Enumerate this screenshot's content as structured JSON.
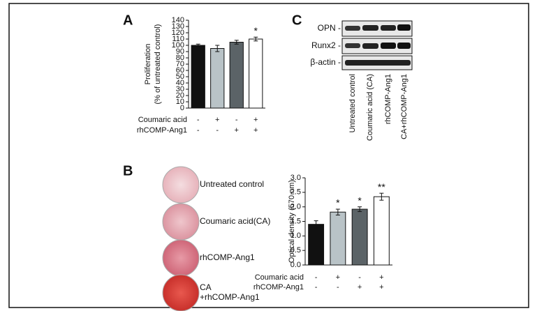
{
  "panels": [
    "A",
    "B",
    "C"
  ],
  "chart_data": [
    {
      "type": "bar",
      "y_label": [
        "Proliferation",
        "(% of untreated control)"
      ],
      "values": [
        100,
        95,
        105,
        110
      ],
      "errors": [
        2,
        5,
        3,
        3
      ],
      "colors": [
        "#111111",
        "#b9c3c7",
        "#5b6367",
        "#ffffff"
      ],
      "stars": [
        null,
        null,
        null,
        "*"
      ],
      "ylim": [
        0,
        140
      ],
      "yticks": [
        0,
        10,
        20,
        30,
        40,
        50,
        60,
        70,
        80,
        90,
        100,
        110,
        120,
        130,
        140
      ],
      "treatments": [
        {
          "name": "Coumaric acid",
          "signs": [
            "-",
            "+",
            "-",
            "+"
          ]
        },
        {
          "name": "rhCOMP-Ang1",
          "signs": [
            "-",
            "-",
            "+",
            "+"
          ]
        }
      ]
    },
    {
      "type": "bar",
      "y_label": [
        "Optical density (570 nm)"
      ],
      "values": [
        1.4,
        1.82,
        1.92,
        2.35
      ],
      "errors": [
        0.12,
        0.1,
        0.08,
        0.12
      ],
      "colors": [
        "#111111",
        "#b9c3c7",
        "#5b6367",
        "#ffffff"
      ],
      "stars": [
        null,
        "*",
        "*",
        "**"
      ],
      "ylim": [
        0,
        3
      ],
      "yticks": [
        {
          "value": 0,
          "label": "0.0"
        },
        0.5,
        {
          "value": 1,
          "label": "1.0"
        },
        1.5,
        {
          "value": 2,
          "label": "2.0"
        },
        2.5,
        {
          "value": 3,
          "label": "3.0"
        }
      ],
      "treatments": [
        {
          "name": "Coumaric acid",
          "signs": [
            "-",
            "+",
            "-",
            "+"
          ]
        },
        {
          "name": "rhCOMP-Ang1",
          "signs": [
            "-",
            "-",
            "+",
            "+"
          ]
        }
      ]
    }
  ],
  "blot": {
    "rows": [
      "OPN -",
      "Runx2 -",
      "β-actin -"
    ],
    "columns": [
      "Untreated control",
      "Coumaric acid (CA)",
      "rhCOMP-Ang1",
      "CA+rhCOMP-Ang1"
    ]
  },
  "photos": [
    [
      "Untreated control"
    ],
    [
      "Coumaric acid(CA)"
    ],
    [
      "rhCOMP-Ang1"
    ],
    [
      "CA",
      "+rhCOMP-Ang1"
    ]
  ]
}
